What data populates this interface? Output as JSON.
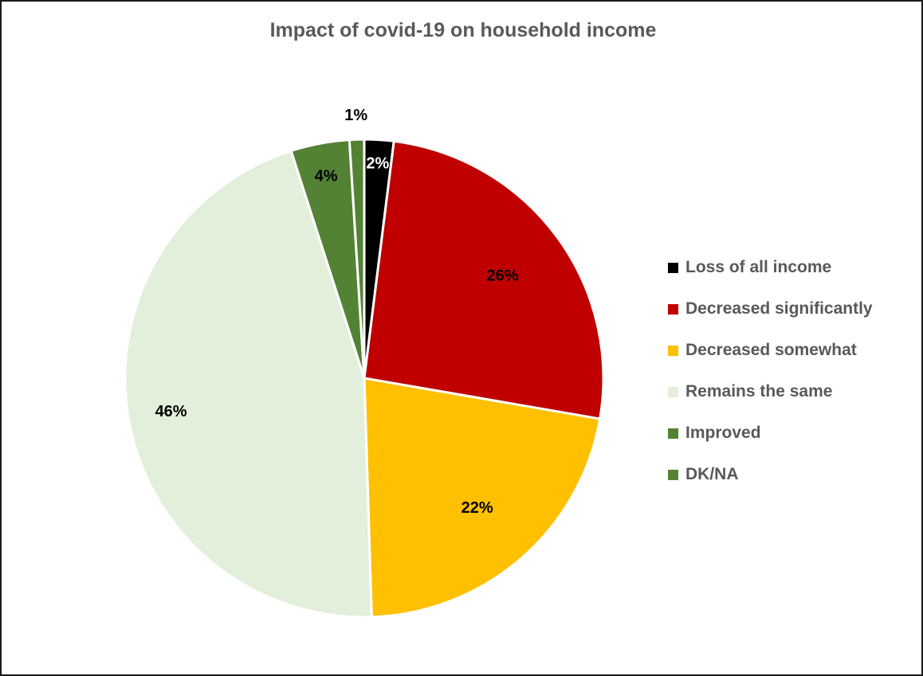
{
  "chart_data": {
    "type": "pie",
    "title": "Impact of covid-19 on household income",
    "categories": [
      "Loss of all income",
      "Decreased significantly",
      "Decreased somewhat",
      "Remains the same",
      "Improved",
      "DK/NA"
    ],
    "values": [
      2,
      26,
      22,
      46,
      4,
      1
    ],
    "data_labels": [
      "2%",
      "26%",
      "22%",
      "46%",
      "4%",
      "1%"
    ],
    "colors": [
      "#000000",
      "#c00000",
      "#ffc000",
      "#e2efda",
      "#548235",
      "#548235"
    ],
    "label_colors": [
      "#ffffff",
      "#000000",
      "#000000",
      "#000000",
      "#000000",
      "#000000"
    ],
    "legend_position": "right"
  }
}
